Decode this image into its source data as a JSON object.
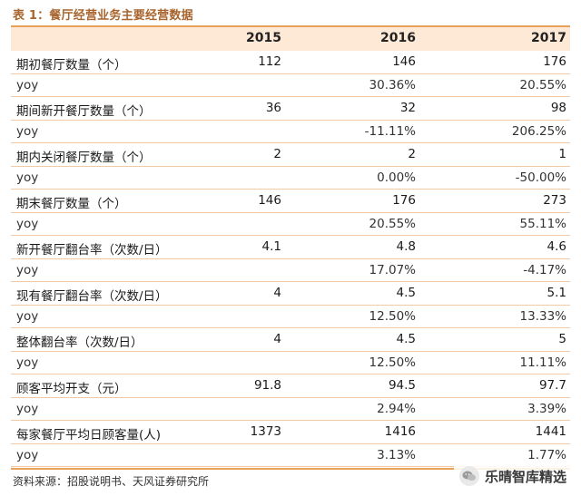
{
  "caption": "表 1：餐厅经营业务主要经营数据",
  "columns": [
    "",
    "2015",
    "2016",
    "2017"
  ],
  "rows": [
    {
      "label": "期初餐厅数量（个）",
      "v2015": "112",
      "v2016": "146",
      "v2017": "176"
    },
    {
      "label": "yoy",
      "v2015": "",
      "v2016": "30.36%",
      "v2017": "20.55%"
    },
    {
      "label": "期间新开餐厅数量（个）",
      "v2015": "36",
      "v2016": "32",
      "v2017": "98"
    },
    {
      "label": "yoy",
      "v2015": "",
      "v2016": "-11.11%",
      "v2017": "206.25%"
    },
    {
      "label": "期内关闭餐厅数量（个）",
      "v2015": "2",
      "v2016": "2",
      "v2017": "1"
    },
    {
      "label": "yoy",
      "v2015": "",
      "v2016": "0.00%",
      "v2017": "-50.00%"
    },
    {
      "label": "期末餐厅数量（个）",
      "v2015": "146",
      "v2016": "176",
      "v2017": "273"
    },
    {
      "label": "yoy",
      "v2015": "",
      "v2016": "20.55%",
      "v2017": "55.11%"
    },
    {
      "label": "新开餐厅翻台率（次数/日）",
      "v2015": "4.1",
      "v2016": "4.8",
      "v2017": "4.6"
    },
    {
      "label": "yoy",
      "v2015": "",
      "v2016": "17.07%",
      "v2017": "-4.17%"
    },
    {
      "label": "现有餐厅翻台率（次数/日）",
      "v2015": "4",
      "v2016": "4.5",
      "v2017": "5.1"
    },
    {
      "label": "yoy",
      "v2015": "",
      "v2016": "12.50%",
      "v2017": "13.33%"
    },
    {
      "label": "整体翻台率（次数/日）",
      "v2015": "4",
      "v2016": "4.5",
      "v2017": "5"
    },
    {
      "label": "yoy",
      "v2015": "",
      "v2016": "12.50%",
      "v2017": "11.11%"
    },
    {
      "label": "顾客平均开支（元）",
      "v2015": "91.8",
      "v2016": "94.5",
      "v2017": "97.7"
    },
    {
      "label": "yoy",
      "v2015": "",
      "v2016": "2.94%",
      "v2017": "3.39%"
    },
    {
      "label": "每家餐厅平均日顾客量(人)",
      "v2015": "1373",
      "v2016": "1416",
      "v2017": "1441"
    },
    {
      "label": "yoy",
      "v2015": "",
      "v2016": "3.13%",
      "v2017": "1.77%"
    }
  ],
  "source": "资料来源：招股说明书、天风证券研究所",
  "watermark": {
    "icon": "wechat-icon",
    "text": "乐晴智库精选"
  },
  "colors": {
    "accent": "#e8a05a",
    "header_bg": "#fde9d6",
    "caption": "#a8642c"
  }
}
